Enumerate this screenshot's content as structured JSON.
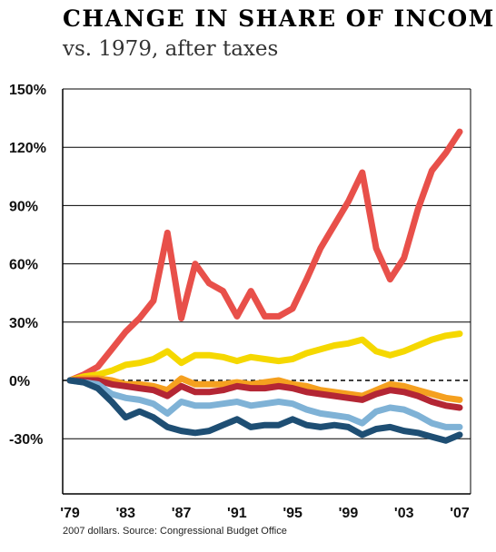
{
  "header": {
    "title": "CHANGE IN SHARE OF INCOME",
    "subtitle": "vs. 1979, after taxes"
  },
  "footer": {
    "source": "2007 dollars. Source: Congressional Budget Office"
  },
  "chart_data": {
    "type": "line",
    "title": "CHANGE IN SHARE OF INCOME",
    "subtitle": "vs. 1979, after taxes",
    "xlabel": "",
    "ylabel": "",
    "ylim": [
      -50,
      150
    ],
    "xlim": [
      1979,
      2007
    ],
    "yticks": [
      150,
      120,
      90,
      60,
      30,
      0,
      -30
    ],
    "ytick_labels": [
      "150%",
      "120%",
      "90%",
      "60%",
      "30%",
      "0%",
      "-30%"
    ],
    "xticks": [
      1979,
      1983,
      1987,
      1991,
      1995,
      1999,
      2003,
      2007
    ],
    "xtick_labels": [
      "'79",
      "'83",
      "'87",
      "'91",
      "'95",
      "'99",
      "'03",
      "'07"
    ],
    "grid": true,
    "zero_line": "dashed",
    "x": [
      1979,
      1980,
      1981,
      1982,
      1983,
      1984,
      1985,
      1986,
      1987,
      1988,
      1989,
      1990,
      1991,
      1992,
      1993,
      1994,
      1995,
      1996,
      1997,
      1998,
      1999,
      2000,
      2001,
      2002,
      2003,
      2004,
      2005,
      2006,
      2007
    ],
    "series": [
      {
        "color": "#e8504a",
        "values": [
          0,
          3,
          7,
          16,
          25,
          32,
          41,
          76,
          32,
          60,
          50,
          46,
          33,
          46,
          33,
          33,
          37,
          52,
          68,
          80,
          92,
          107,
          68,
          52,
          63,
          88,
          108,
          117,
          128
        ]
      },
      {
        "color": "#f5d800",
        "values": [
          0,
          2,
          3,
          5,
          8,
          9,
          11,
          15,
          9,
          13,
          13,
          12,
          10,
          12,
          11,
          10,
          11,
          14,
          16,
          18,
          19,
          21,
          15,
          13,
          15,
          18,
          21,
          23,
          24
        ]
      },
      {
        "color": "#f5a01f",
        "values": [
          0,
          1,
          1,
          0,
          -2,
          -2,
          -3,
          -5,
          1,
          -2,
          -2,
          -2,
          -1,
          -2,
          -1,
          0,
          -2,
          -3,
          -5,
          -6,
          -7,
          -8,
          -5,
          -2,
          -3,
          -5,
          -7,
          -9,
          -10
        ]
      },
      {
        "color": "#b42634",
        "values": [
          0,
          0,
          0,
          -2,
          -3,
          -4,
          -5,
          -8,
          -3,
          -6,
          -6,
          -5,
          -3,
          -4,
          -4,
          -3,
          -4,
          -6,
          -7,
          -8,
          -9,
          -10,
          -7,
          -5,
          -6,
          -8,
          -11,
          -13,
          -14
        ]
      },
      {
        "color": "#7fb2d6",
        "values": [
          0,
          -1,
          -2,
          -7,
          -9,
          -10,
          -12,
          -17,
          -11,
          -13,
          -13,
          -12,
          -11,
          -13,
          -12,
          -11,
          -12,
          -15,
          -17,
          -18,
          -19,
          -22,
          -16,
          -14,
          -15,
          -18,
          -22,
          -24,
          -24
        ]
      },
      {
        "color": "#1e4e73",
        "values": [
          0,
          -1,
          -4,
          -11,
          -19,
          -16,
          -19,
          -24,
          -26,
          -27,
          -26,
          -23,
          -20,
          -24,
          -23,
          -23,
          -20,
          -23,
          -24,
          -23,
          -24,
          -28,
          -25,
          -24,
          -26,
          -27,
          -29,
          -31,
          -28
        ]
      }
    ]
  }
}
